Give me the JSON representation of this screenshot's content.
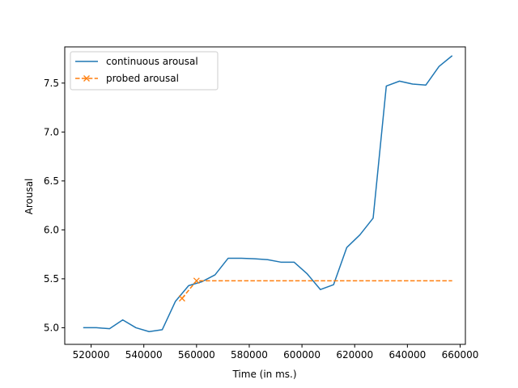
{
  "chart_data": {
    "type": "line",
    "title": "",
    "xlabel": "Time (in ms.)",
    "ylabel": "Arousal",
    "xlim": [
      510000,
      662000
    ],
    "ylim": [
      4.83,
      7.87
    ],
    "xticks": [
      520000,
      540000,
      560000,
      580000,
      600000,
      620000,
      640000,
      660000
    ],
    "xtick_labels": [
      "520000",
      "540000",
      "560000",
      "580000",
      "600000",
      "620000",
      "640000",
      "660000"
    ],
    "yticks": [
      5.0,
      5.5,
      6.0,
      6.5,
      7.0,
      7.5
    ],
    "ytick_labels": [
      "5.0",
      "5.5",
      "6.0",
      "6.5",
      "7.0",
      "7.5"
    ],
    "grid": false,
    "legend_position": "top-left",
    "series": [
      {
        "name": "continuous arousal",
        "color": "#1f77b4",
        "style": "solid",
        "marker": "none",
        "x": [
          517000,
          522000,
          527000,
          532000,
          537000,
          542000,
          547000,
          552000,
          557000,
          562000,
          567000,
          572000,
          577000,
          582000,
          587000,
          592000,
          597000,
          602000,
          607000,
          612000,
          617000,
          622000,
          627000,
          632000,
          637000,
          642000,
          647000,
          652000,
          657000
        ],
        "y": [
          5.0,
          5.0,
          4.99,
          5.08,
          5.0,
          4.96,
          4.98,
          5.27,
          5.43,
          5.47,
          5.54,
          5.71,
          5.71,
          5.705,
          5.695,
          5.67,
          5.67,
          5.55,
          5.39,
          5.44,
          5.82,
          5.95,
          6.12,
          7.47,
          7.52,
          7.49,
          7.48,
          7.67,
          7.78
        ]
      },
      {
        "name": "probed arousal",
        "color": "#ff7f0e",
        "style": "dashed",
        "marker": "x",
        "x": [
          554500,
          560000,
          657000
        ],
        "y": [
          5.3,
          5.48,
          5.48
        ],
        "marker_points": [
          [
            554500,
            5.3
          ],
          [
            560000,
            5.48
          ]
        ]
      }
    ]
  }
}
